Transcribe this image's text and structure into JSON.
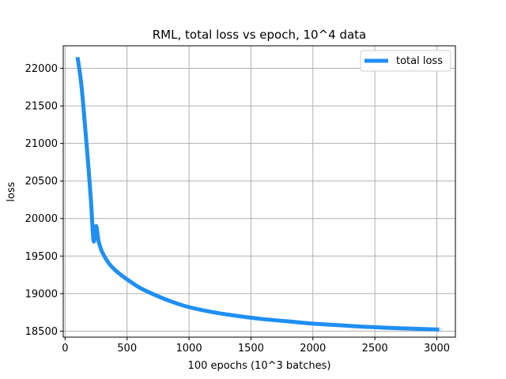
{
  "chart_data": {
    "type": "line",
    "title": "RML, total loss vs epoch, 10^4 data",
    "xlabel": "100 epochs (10^3 batches)",
    "ylabel": "loss",
    "xlim": [
      -15,
      3150
    ],
    "ylim": [
      18420,
      22300
    ],
    "xticks": [
      0,
      500,
      1000,
      1500,
      2000,
      2500,
      3000
    ],
    "yticks": [
      18500,
      19000,
      19500,
      20000,
      20500,
      21000,
      21500,
      22000
    ],
    "grid": true,
    "legend_position": "top-right",
    "series": [
      {
        "name": "total loss",
        "color": "#1f8ff2",
        "x": [
          100,
          130,
          160,
          190,
          210,
          230,
          250,
          270,
          300,
          350,
          400,
          450,
          500,
          600,
          700,
          800,
          900,
          1000,
          1200,
          1400,
          1600,
          1800,
          2000,
          2200,
          2400,
          2600,
          2800,
          3000,
          3020
        ],
        "y": [
          22150,
          21800,
          21250,
          20650,
          20200,
          19700,
          19900,
          19700,
          19550,
          19410,
          19320,
          19250,
          19190,
          19080,
          19000,
          18930,
          18870,
          18820,
          18750,
          18700,
          18660,
          18630,
          18600,
          18580,
          18560,
          18545,
          18533,
          18522,
          18520
        ]
      }
    ]
  }
}
